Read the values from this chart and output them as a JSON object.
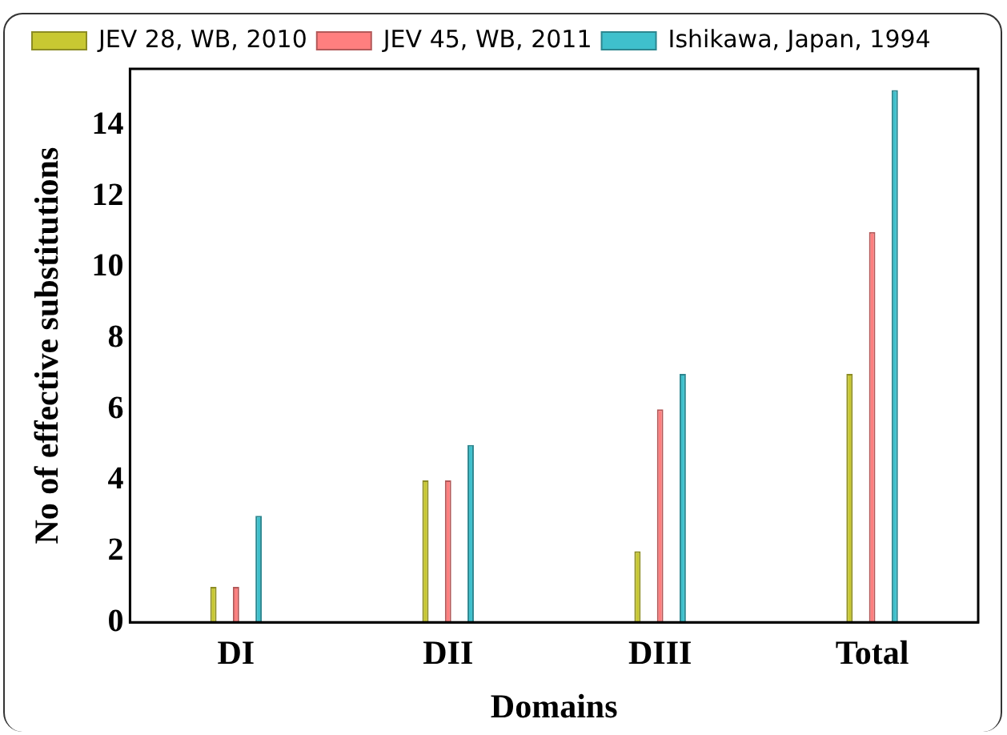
{
  "chart_data": {
    "type": "bar",
    "xlabel": "Domains",
    "ylabel": "No of effective substitutions",
    "categories": [
      "DI",
      "DII",
      "DIII",
      "Total"
    ],
    "series": [
      {
        "name": "JEV 28, WB, 2010",
        "color": "#c8c832",
        "values": [
          1,
          4,
          2,
          7
        ]
      },
      {
        "name": "JEV 45, WB, 2011",
        "color": "#ff7f7f",
        "values": [
          1,
          4,
          6,
          11
        ]
      },
      {
        "name": "Ishikawa, Japan, 1994",
        "color": "#3fc0cc",
        "values": [
          3,
          5,
          7,
          15
        ]
      }
    ],
    "ylim": [
      0,
      15.6
    ],
    "yticks": [
      0,
      2,
      4,
      6,
      8,
      10,
      12,
      14
    ],
    "grid": false,
    "legend": "top left"
  }
}
